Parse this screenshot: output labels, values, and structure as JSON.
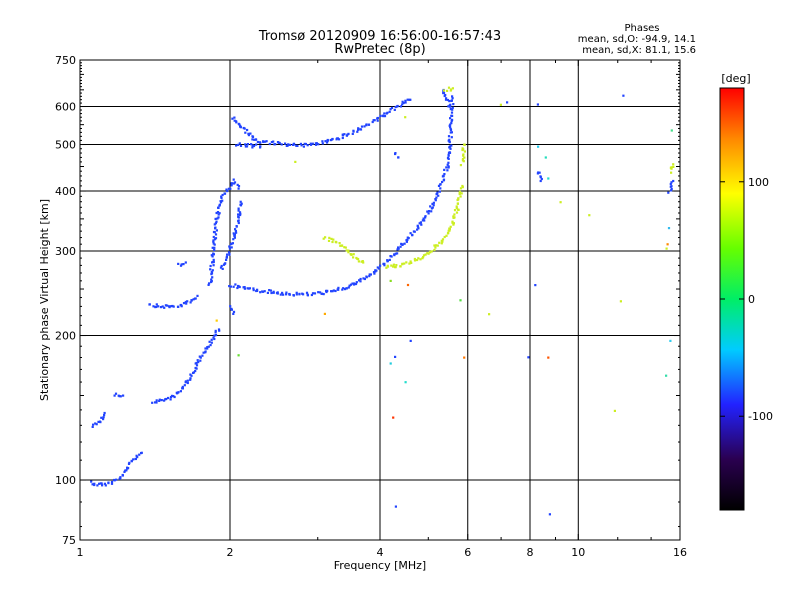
{
  "chart_data": {
    "type": "scatter",
    "title": "Tromsø 20120909 16:56:00-16:57:43",
    "subtitle": "RwPretec (8p)",
    "xlabel": "Frequency [MHz]",
    "ylabel": "Stationary phase Virtual Height [km]",
    "x_scale": "log",
    "y_scale": "log",
    "xlim": [
      1,
      16
    ],
    "ylim": [
      75,
      750
    ],
    "x_ticks": [
      1,
      2,
      4,
      6,
      8,
      10,
      16
    ],
    "y_ticks": [
      75,
      100,
      200,
      300,
      400,
      500,
      600,
      750
    ],
    "x_grid": [
      2,
      4,
      6,
      8,
      10
    ],
    "y_grid": [
      100,
      200,
      300,
      400,
      500,
      600
    ],
    "grid": true,
    "stats": {
      "heading": "Phases",
      "line_o": "mean, sd,O: -94.9, 14.1",
      "line_x": "mean, sd,X:  81.1, 15.6"
    },
    "colorbar": {
      "label": "[deg]",
      "range": [
        -180,
        180
      ],
      "ticks": [
        100,
        0,
        -100
      ]
    },
    "series": [
      {
        "mode": "O",
        "phase_deg": -95,
        "color": "#2244ff",
        "segments": [
          [
            [
              1.05,
              99
            ],
            [
              1.08,
              98
            ],
            [
              1.12,
              98
            ],
            [
              1.16,
              99
            ],
            [
              1.2,
              101
            ],
            [
              1.23,
              104
            ],
            [
              1.26,
              108
            ],
            [
              1.3,
              112
            ],
            [
              1.33,
              114
            ]
          ],
          [
            [
              1.06,
              130
            ],
            [
              1.1,
              133
            ],
            [
              1.12,
              138
            ]
          ],
          [
            [
              1.18,
              151
            ],
            [
              1.22,
              150
            ]
          ],
          [
            [
              1.38,
              232
            ],
            [
              1.45,
              230
            ],
            [
              1.55,
              230
            ],
            [
              1.62,
              232
            ],
            [
              1.68,
              237
            ],
            [
              1.72,
              242
            ]
          ],
          [
            [
              1.58,
              281
            ],
            [
              1.63,
              284
            ]
          ],
          [
            [
              1.4,
              145
            ],
            [
              1.48,
              147
            ],
            [
              1.55,
              150
            ],
            [
              1.62,
              158
            ],
            [
              1.68,
              166
            ],
            [
              1.72,
              175
            ],
            [
              1.76,
              182
            ],
            [
              1.82,
              192
            ],
            [
              1.86,
              200
            ],
            [
              1.9,
              206
            ]
          ],
          [
            [
              1.82,
              255
            ],
            [
              1.84,
              280
            ],
            [
              1.86,
              310
            ],
            [
              1.88,
              345
            ],
            [
              1.9,
              370
            ],
            [
              1.93,
              390
            ],
            [
              1.96,
              400
            ],
            [
              2.0,
              410
            ],
            [
              2.04,
              420
            ],
            [
              2.08,
              405
            ]
          ],
          [
            [
              1.92,
              275
            ],
            [
              1.98,
              295
            ],
            [
              2.04,
              320
            ],
            [
              2.08,
              350
            ],
            [
              2.1,
              380
            ]
          ],
          [
            [
              2.0,
              255
            ],
            [
              2.1,
              252
            ],
            [
              2.25,
              249
            ],
            [
              2.45,
              246
            ],
            [
              2.65,
              244
            ],
            [
              2.9,
              244
            ],
            [
              3.2,
              247
            ],
            [
              3.5,
              254
            ],
            [
              3.8,
              266
            ],
            [
              4.1,
              283
            ],
            [
              4.4,
              305
            ],
            [
              4.7,
              330
            ],
            [
              5.0,
              360
            ],
            [
              5.2,
              390
            ],
            [
              5.35,
              420
            ],
            [
              5.45,
              450
            ],
            [
              5.52,
              500
            ],
            [
              5.56,
              560
            ],
            [
              5.58,
              630
            ]
          ],
          [
            [
              2.0,
              230
            ],
            [
              2.03,
              222
            ]
          ],
          [
            [
              2.03,
              570
            ],
            [
              2.08,
              550
            ],
            [
              2.15,
              535
            ],
            [
              2.25,
              510
            ],
            [
              2.4,
              505
            ],
            [
              2.6,
              500
            ],
            [
              2.8,
              498
            ],
            [
              3.0,
              503
            ],
            [
              3.3,
              515
            ],
            [
              3.6,
              535
            ],
            [
              3.9,
              560
            ],
            [
              4.2,
              590
            ],
            [
              4.5,
              612
            ]
          ],
          [
            [
              2.07,
              500
            ],
            [
              2.15,
              498
            ],
            [
              2.3,
              496
            ]
          ],
          [
            [
              5.35,
              650
            ],
            [
              5.45,
              620
            ],
            [
              5.52,
              600
            ]
          ],
          [
            [
              4.3,
              480
            ],
            [
              4.35,
              470
            ]
          ],
          [
            [
              8.3,
              440
            ],
            [
              8.4,
              420
            ]
          ],
          [
            [
              15.2,
              400
            ],
            [
              15.5,
              420
            ]
          ],
          [
            [
              4.5,
              615
            ],
            [
              4.6,
              620
            ]
          ]
        ],
        "scatter": [
          [
            4.3,
            88
          ],
          [
            8.8,
            85
          ],
          [
            8.2,
            255
          ],
          [
            7.2,
            610
          ],
          [
            8.3,
            605
          ],
          [
            12.3,
            635
          ],
          [
            4.3,
            180
          ],
          [
            4.6,
            195
          ],
          [
            7.9,
            180
          ]
        ]
      },
      {
        "mode": "X",
        "phase_deg": 81,
        "color": "#ccee22",
        "segments": [
          [
            [
              3.1,
              320
            ],
            [
              3.25,
              313
            ],
            [
              3.4,
              303
            ],
            [
              3.55,
              292
            ],
            [
              3.7,
              284
            ]
          ],
          [
            [
              4.1,
              278
            ],
            [
              4.4,
              280
            ],
            [
              4.7,
              287
            ],
            [
              5.0,
              297
            ],
            [
              5.3,
              312
            ],
            [
              5.55,
              335
            ],
            [
              5.7,
              365
            ],
            [
              5.8,
              395
            ],
            [
              5.85,
              410
            ]
          ],
          [
            [
              5.85,
              455
            ],
            [
              5.9,
              500
            ]
          ],
          [
            [
              5.4,
              650
            ],
            [
              5.6,
              655
            ]
          ],
          [
            [
              15.3,
              440
            ],
            [
              15.5,
              455
            ]
          ]
        ],
        "scatter": [
          [
            2.7,
            460
          ],
          [
            4.5,
            570
          ],
          [
            6.6,
            222
          ],
          [
            9.2,
            380
          ],
          [
            10.5,
            355
          ],
          [
            12.2,
            235
          ],
          [
            11.8,
            140
          ],
          [
            15.0,
            305
          ],
          [
            7.0,
            605
          ]
        ]
      }
    ],
    "outliers": [
      {
        "x": 4.25,
        "y": 135,
        "phase_deg": 150,
        "color": "#ff3300"
      },
      {
        "x": 4.55,
        "y": 255,
        "phase_deg": 140,
        "color": "#ff6600"
      },
      {
        "x": 8.7,
        "y": 180,
        "phase_deg": 145,
        "color": "#ff5500"
      },
      {
        "x": 15.1,
        "y": 310,
        "phase_deg": 130,
        "color": "#ff8800"
      },
      {
        "x": 5.9,
        "y": 180,
        "phase_deg": 135,
        "color": "#ff7700"
      },
      {
        "x": 3.1,
        "y": 222,
        "phase_deg": 120,
        "color": "#ffaa00"
      },
      {
        "x": 1.88,
        "y": 215,
        "phase_deg": 110,
        "color": "#ffcc00"
      },
      {
        "x": 4.5,
        "y": 160,
        "phase_deg": -10,
        "color": "#22ddcc"
      },
      {
        "x": 4.2,
        "y": 175,
        "phase_deg": 0,
        "color": "#22ccdd"
      },
      {
        "x": 8.3,
        "y": 495,
        "phase_deg": -5,
        "color": "#22ccee"
      },
      {
        "x": 8.6,
        "y": 470,
        "phase_deg": 10,
        "color": "#22ddbb"
      },
      {
        "x": 15.2,
        "y": 335,
        "phase_deg": -20,
        "color": "#33bbee"
      },
      {
        "x": 15.3,
        "y": 195,
        "phase_deg": -15,
        "color": "#33ccee"
      },
      {
        "x": 8.7,
        "y": 425,
        "phase_deg": 5,
        "color": "#22ddcc"
      },
      {
        "x": 15.4,
        "y": 535,
        "phase_deg": 30,
        "color": "#44dd88"
      },
      {
        "x": 5.8,
        "y": 237,
        "phase_deg": 40,
        "color": "#55dd44"
      },
      {
        "x": 2.08,
        "y": 182,
        "phase_deg": 50,
        "color": "#66dd33"
      },
      {
        "x": 15.0,
        "y": 165,
        "phase_deg": 20,
        "color": "#33ddaa"
      },
      {
        "x": 4.2,
        "y": 260,
        "phase_deg": 60,
        "color": "#88dd22"
      }
    ]
  }
}
